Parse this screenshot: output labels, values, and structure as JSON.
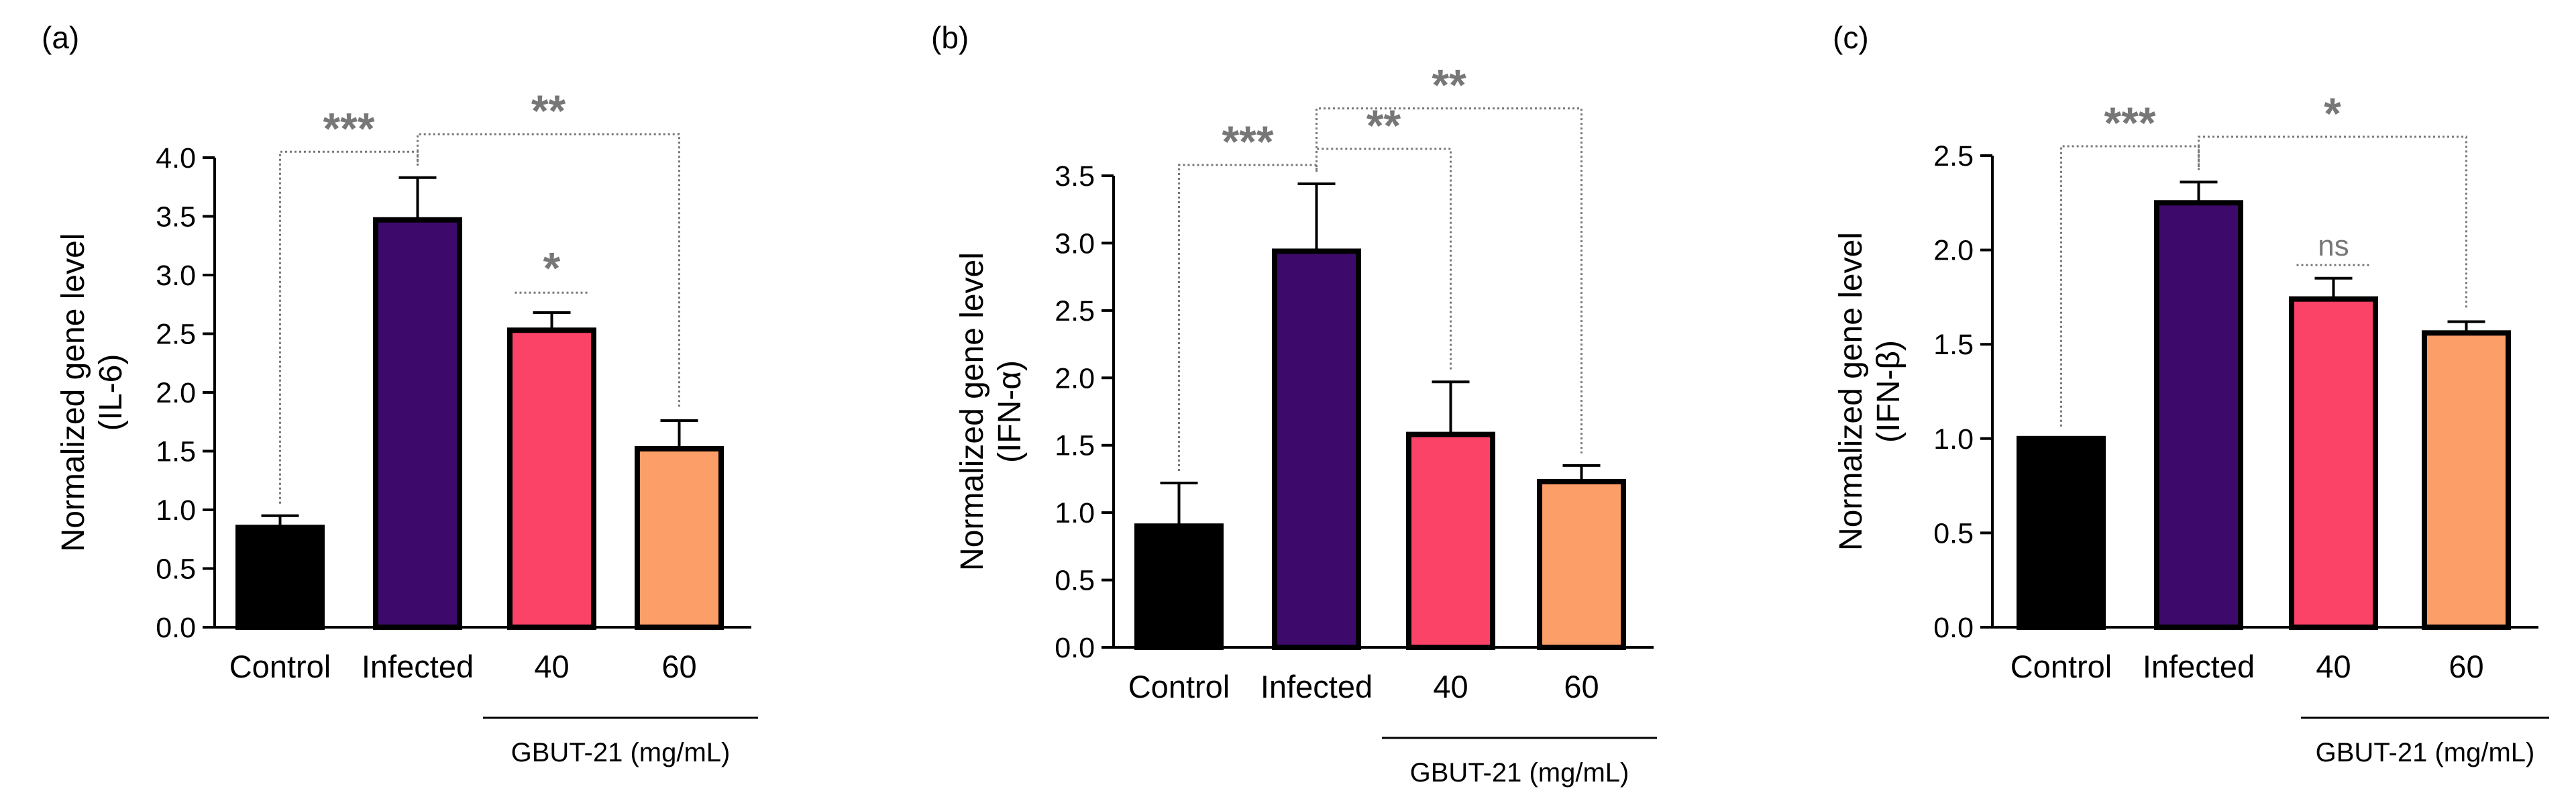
{
  "chart_data": [
    {
      "panel_label": "(a)",
      "type": "bar",
      "ylabel_line1": "Normalized gene level",
      "ylabel_line2": "(IL-6)",
      "ylim": [
        0,
        4.0
      ],
      "yticks": [
        "0.0",
        "0.5",
        "1.0",
        "1.5",
        "2.0",
        "2.5",
        "3.0",
        "3.5",
        "4.0"
      ],
      "categories": [
        "Control",
        "Infected",
        "40",
        "60"
      ],
      "values": [
        0.85,
        3.47,
        2.53,
        1.52
      ],
      "errors": [
        0.1,
        0.36,
        0.15,
        0.24
      ],
      "group_label": "GBUT-21 (mg/mL)",
      "significance": [
        {
          "label": "***",
          "type": "bracket",
          "from": 0,
          "to": 1,
          "level": 4.05
        },
        {
          "label": "**",
          "type": "bracket",
          "from": 1,
          "to": 3,
          "level": 4.2
        },
        {
          "label": "*",
          "type": "over",
          "bar": 2,
          "level": 2.85
        }
      ]
    },
    {
      "panel_label": "(b)",
      "type": "bar",
      "ylabel_line1": "Normalized gene level",
      "ylabel_line2": "(IFN-α)",
      "ylim": [
        0,
        3.5
      ],
      "yticks": [
        "0.0",
        "0.5",
        "1.0",
        "1.5",
        "2.0",
        "2.5",
        "3.0",
        "3.5"
      ],
      "categories": [
        "Control",
        "Infected",
        "40",
        "60"
      ],
      "values": [
        0.9,
        2.94,
        1.58,
        1.23
      ],
      "errors": [
        0.32,
        0.5,
        0.39,
        0.12
      ],
      "group_label": "GBUT-21 (mg/mL)",
      "significance": [
        {
          "label": "***",
          "type": "bracket",
          "from": 0,
          "to": 1,
          "level": 3.58
        },
        {
          "label": "**",
          "type": "bracket",
          "from": 1,
          "to": 2,
          "level": 3.7
        },
        {
          "label": "**",
          "type": "bracket",
          "from": 1,
          "to": 3,
          "level": 4.0
        }
      ]
    },
    {
      "panel_label": "(c)",
      "type": "bar",
      "ylabel_line1": "Normalized gene level",
      "ylabel_line2": "(IFN-β)",
      "ylim": [
        0,
        2.5
      ],
      "yticks": [
        "0.0",
        "0.5",
        "1.0",
        "1.5",
        "2.0",
        "2.5"
      ],
      "categories": [
        "Control",
        "Infected",
        "40",
        "60"
      ],
      "values": [
        1.0,
        2.25,
        1.74,
        1.56
      ],
      "errors": [
        0.0,
        0.11,
        0.11,
        0.06
      ],
      "group_label": "GBUT-21 (mg/mL)",
      "significance": [
        {
          "label": "***",
          "type": "bracket",
          "from": 0,
          "to": 1,
          "level": 2.55
        },
        {
          "label": "*",
          "type": "bracket",
          "from": 1,
          "to": 3,
          "level": 2.6
        },
        {
          "label": "ns",
          "type": "over",
          "bar": 2,
          "level": 1.92
        }
      ]
    }
  ],
  "colors": {
    "bars": [
      "#000000",
      "#3d0a6b",
      "#fb4267",
      "#fc9e67"
    ],
    "significance": "#777777",
    "axis": "#000000"
  }
}
